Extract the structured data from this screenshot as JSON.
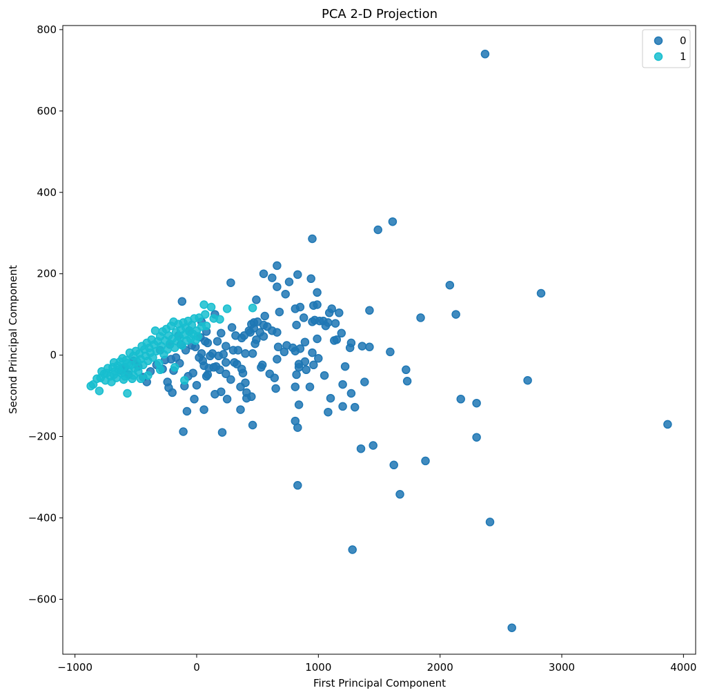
{
  "colors": {
    "class0": "#1f77b4",
    "class1": "#17becf"
  },
  "chart_data": {
    "type": "scatter",
    "title": "PCA 2-D Projection",
    "xlabel": "First Principal Component",
    "ylabel": "Second Principal Component",
    "xlim": [
      -1100,
      4100
    ],
    "ylim": [
      -735,
      810
    ],
    "xticks": [
      -1000,
      0,
      1000,
      2000,
      3000,
      4000
    ],
    "yticks": [
      -600,
      -400,
      -200,
      0,
      200,
      400,
      600,
      800
    ],
    "xtick_labels": [
      "−1000",
      "0",
      "1000",
      "2000",
      "3000",
      "4000"
    ],
    "ytick_labels": [
      "−600",
      "−400",
      "−200",
      "0",
      "200",
      "400",
      "600",
      "800"
    ],
    "grid": false,
    "legend_position": "top-right",
    "series": [
      {
        "name": "0",
        "color": "#1f77b4",
        "points": [
          [
            2370,
            740
          ],
          [
            2590,
            -670
          ],
          [
            3870,
            -170
          ],
          [
            2830,
            152
          ],
          [
            2720,
            -62
          ],
          [
            2410,
            -410
          ],
          [
            2300,
            -118
          ],
          [
            2300,
            -202
          ],
          [
            2170,
            -108
          ],
          [
            2130,
            100
          ],
          [
            2080,
            172
          ],
          [
            1880,
            -260
          ],
          [
            1840,
            92
          ],
          [
            1730,
            -64
          ],
          [
            1720,
            -36
          ],
          [
            1670,
            -342
          ],
          [
            1620,
            -270
          ],
          [
            1610,
            328
          ],
          [
            1590,
            8
          ],
          [
            1490,
            308
          ],
          [
            1450,
            -222
          ],
          [
            1420,
            110
          ],
          [
            1420,
            20
          ],
          [
            1380,
            -66
          ],
          [
            1360,
            22
          ],
          [
            1350,
            -230
          ],
          [
            1280,
            -478
          ],
          [
            1300,
            -128
          ],
          [
            1270,
            -94
          ],
          [
            1260,
            18
          ],
          [
            1270,
            30
          ],
          [
            1220,
            -28
          ],
          [
            1200,
            -72
          ],
          [
            1200,
            -126
          ],
          [
            1190,
            54
          ],
          [
            1170,
            104
          ],
          [
            1150,
            38
          ],
          [
            1140,
            78
          ],
          [
            1130,
            36
          ],
          [
            1110,
            114
          ],
          [
            1100,
            -106
          ],
          [
            1090,
            104
          ],
          [
            1080,
            80
          ],
          [
            1080,
            -140
          ],
          [
            1060,
            72
          ],
          [
            1050,
            -50
          ],
          [
            1040,
            84
          ],
          [
            1010,
            84
          ],
          [
            1000,
            -8
          ],
          [
            990,
            154
          ],
          [
            990,
            124
          ],
          [
            990,
            40
          ],
          [
            970,
            86
          ],
          [
            960,
            122
          ],
          [
            960,
            -24
          ],
          [
            950,
            286
          ],
          [
            950,
            82
          ],
          [
            950,
            6
          ],
          [
            940,
            188
          ],
          [
            930,
            -78
          ],
          [
            900,
            -36
          ],
          [
            890,
            32
          ],
          [
            890,
            -16
          ],
          [
            880,
            92
          ],
          [
            850,
            118
          ],
          [
            850,
            16
          ],
          [
            840,
            -22
          ],
          [
            840,
            -30
          ],
          [
            840,
            -122
          ],
          [
            830,
            198
          ],
          [
            830,
            -178
          ],
          [
            830,
            -320
          ],
          [
            820,
            74
          ],
          [
            820,
            -48
          ],
          [
            810,
            114
          ],
          [
            810,
            10
          ],
          [
            810,
            -78
          ],
          [
            810,
            -162
          ],
          [
            790,
            18
          ],
          [
            760,
            180
          ],
          [
            740,
            24
          ],
          [
            730,
            150
          ],
          [
            720,
            8
          ],
          [
            680,
            106
          ],
          [
            670,
            20
          ],
          [
            660,
            220
          ],
          [
            660,
            168
          ],
          [
            660,
            56
          ],
          [
            660,
            -10
          ],
          [
            650,
            -82
          ],
          [
            640,
            -56
          ],
          [
            620,
            190
          ],
          [
            620,
            60
          ],
          [
            600,
            -46
          ],
          [
            580,
            70
          ],
          [
            560,
            96
          ],
          [
            550,
            46
          ],
          [
            550,
            200
          ],
          [
            550,
            74
          ],
          [
            540,
            -24
          ],
          [
            530,
            -30
          ],
          [
            520,
            56
          ],
          [
            500,
            82
          ],
          [
            490,
            38
          ],
          [
            490,
            136
          ],
          [
            480,
            28
          ],
          [
            470,
            66
          ],
          [
            470,
            80
          ],
          [
            460,
            4
          ],
          [
            460,
            -172
          ],
          [
            450,
            76
          ],
          [
            450,
            -102
          ],
          [
            440,
            56
          ],
          [
            430,
            60
          ],
          [
            410,
            -92
          ],
          [
            410,
            -106
          ],
          [
            400,
            -68
          ],
          [
            400,
            4
          ],
          [
            390,
            48
          ],
          [
            380,
            -44
          ],
          [
            370,
            42
          ],
          [
            370,
            -34
          ],
          [
            360,
            -134
          ],
          [
            360,
            -78
          ],
          [
            340,
            12
          ],
          [
            330,
            -22
          ],
          [
            320,
            48
          ],
          [
            310,
            -18
          ],
          [
            300,
            12
          ],
          [
            290,
            68
          ],
          [
            280,
            178
          ],
          [
            280,
            -60
          ],
          [
            250,
            -108
          ],
          [
            240,
            22
          ],
          [
            240,
            -18
          ],
          [
            240,
            -46
          ],
          [
            220,
            2
          ],
          [
            210,
            -190
          ],
          [
            200,
            54
          ],
          [
            200,
            -90
          ],
          [
            190,
            -36
          ],
          [
            180,
            -2
          ],
          [
            170,
            34
          ],
          [
            160,
            -28
          ],
          [
            150,
            100
          ],
          [
            150,
            -96
          ],
          [
            140,
            -30
          ],
          [
            130,
            4
          ],
          [
            110,
            -2
          ],
          [
            100,
            -32
          ],
          [
            90,
            30
          ],
          [
            90,
            -48
          ],
          [
            80,
            58
          ],
          [
            80,
            -52
          ],
          [
            70,
            34
          ],
          [
            60,
            -134
          ],
          [
            60,
            -26
          ],
          [
            50,
            -14
          ],
          [
            40,
            4
          ],
          [
            40,
            82
          ],
          [
            30,
            44
          ],
          [
            20,
            -6
          ],
          [
            0,
            -74
          ],
          [
            -10,
            20
          ],
          [
            -20,
            -108
          ],
          [
            -30,
            -44
          ],
          [
            -40,
            24
          ],
          [
            -60,
            60
          ],
          [
            -70,
            -52
          ],
          [
            -80,
            -138
          ],
          [
            -90,
            12
          ],
          [
            -100,
            -76
          ],
          [
            -110,
            -188
          ],
          [
            -120,
            132
          ],
          [
            -130,
            26
          ],
          [
            -140,
            -20
          ],
          [
            -150,
            48
          ],
          [
            -170,
            -6
          ],
          [
            -190,
            -38
          ],
          [
            -200,
            -92
          ],
          [
            -210,
            -10
          ],
          [
            -220,
            26
          ],
          [
            -230,
            -80
          ],
          [
            -240,
            -66
          ],
          [
            -260,
            -12
          ],
          [
            -280,
            -34
          ],
          [
            -300,
            12
          ],
          [
            -330,
            -24
          ],
          [
            -380,
            -40
          ],
          [
            -410,
            -66
          ],
          [
            -440,
            -54
          ],
          [
            -480,
            -28
          ],
          [
            -520,
            -14
          ],
          [
            -560,
            -48
          ],
          [
            -590,
            -30
          ],
          [
            -620,
            -38
          ]
        ]
      },
      {
        "name": "1",
        "color": "#17becf",
        "points": [
          [
            -870,
            -76
          ],
          [
            -850,
            -72
          ],
          [
            -800,
            -88
          ],
          [
            -790,
            -56
          ],
          [
            -780,
            -40
          ],
          [
            -760,
            -46
          ],
          [
            -740,
            -44
          ],
          [
            -730,
            -32
          ],
          [
            -710,
            -52
          ],
          [
            -700,
            -66
          ],
          [
            -690,
            -30
          ],
          [
            -680,
            -18
          ],
          [
            -670,
            -40
          ],
          [
            -660,
            -56
          ],
          [
            -650,
            -26
          ],
          [
            -640,
            -36
          ],
          [
            -630,
            -16
          ],
          [
            -620,
            -44
          ],
          [
            -610,
            -8
          ],
          [
            -600,
            -30
          ],
          [
            -590,
            -52
          ],
          [
            -580,
            -12
          ],
          [
            -570,
            -20
          ],
          [
            -570,
            -94
          ],
          [
            -560,
            -38
          ],
          [
            -550,
            6
          ],
          [
            -540,
            -24
          ],
          [
            -530,
            -58
          ],
          [
            -520,
            -2
          ],
          [
            -510,
            -32
          ],
          [
            -500,
            10
          ],
          [
            -490,
            -16
          ],
          [
            -480,
            -40
          ],
          [
            -470,
            4
          ],
          [
            -460,
            -10
          ],
          [
            -450,
            22
          ],
          [
            -440,
            -24
          ],
          [
            -430,
            14
          ],
          [
            -420,
            -2
          ],
          [
            -410,
            30
          ],
          [
            -400,
            -14
          ],
          [
            -390,
            18
          ],
          [
            -380,
            6
          ],
          [
            -370,
            38
          ],
          [
            -360,
            -6
          ],
          [
            -350,
            26
          ],
          [
            -340,
            60
          ],
          [
            -330,
            10
          ],
          [
            -320,
            34
          ],
          [
            -310,
            -20
          ],
          [
            -300,
            46
          ],
          [
            -290,
            22
          ],
          [
            -280,
            58
          ],
          [
            -270,
            2
          ],
          [
            -260,
            36
          ],
          [
            -250,
            64
          ],
          [
            -240,
            14
          ],
          [
            -230,
            48
          ],
          [
            -220,
            28
          ],
          [
            -210,
            72
          ],
          [
            -200,
            40
          ],
          [
            -190,
            82
          ],
          [
            -180,
            18
          ],
          [
            -170,
            56
          ],
          [
            -160,
            34
          ],
          [
            -150,
            76
          ],
          [
            -140,
            44
          ],
          [
            -130,
            62
          ],
          [
            -120,
            24
          ],
          [
            -110,
            80
          ],
          [
            -100,
            50
          ],
          [
            -90,
            68
          ],
          [
            -80,
            36
          ],
          [
            -70,
            84
          ],
          [
            -60,
            58
          ],
          [
            -50,
            40
          ],
          [
            -40,
            74
          ],
          [
            -30,
            52
          ],
          [
            -20,
            90
          ],
          [
            -10,
            36
          ],
          [
            0,
            60
          ],
          [
            10,
            46
          ],
          [
            20,
            92
          ],
          [
            40,
            70
          ],
          [
            60,
            124
          ],
          [
            70,
            100
          ],
          [
            80,
            72
          ],
          [
            120,
            118
          ],
          [
            140,
            90
          ],
          [
            190,
            88
          ],
          [
            250,
            114
          ],
          [
            460,
            116
          ],
          [
            -100,
            -62
          ],
          [
            -180,
            -30
          ],
          [
            -300,
            -36
          ],
          [
            -400,
            -50
          ],
          [
            -460,
            -58
          ],
          [
            -520,
            -50
          ],
          [
            -600,
            -60
          ],
          [
            -680,
            -48
          ],
          [
            -750,
            -62
          ],
          [
            -820,
            -58
          ]
        ]
      }
    ]
  }
}
